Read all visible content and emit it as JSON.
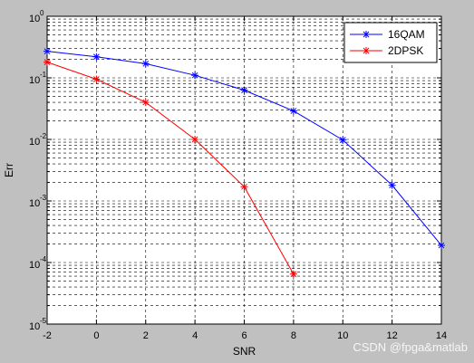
{
  "chart_data": {
    "type": "line",
    "xlabel": "SNR",
    "ylabel": "Err",
    "yscale": "log",
    "xlim": [
      -2,
      14
    ],
    "ylim": [
      1e-05,
      1
    ],
    "x_ticks": [
      -2,
      0,
      2,
      4,
      6,
      8,
      10,
      12,
      14
    ],
    "x_tick_labels": [
      "-2",
      "0",
      "2",
      "4",
      "6",
      "8",
      "10",
      "12",
      "14"
    ],
    "y_ticks": [
      1e-05,
      0.0001,
      0.001,
      0.01,
      0.1,
      1
    ],
    "y_tick_labels": [
      {
        "base": "10",
        "exp": "-5"
      },
      {
        "base": "10",
        "exp": "-4"
      },
      {
        "base": "10",
        "exp": "-3"
      },
      {
        "base": "10",
        "exp": "-2"
      },
      {
        "base": "10",
        "exp": "-1"
      },
      {
        "base": "10",
        "exp": "0"
      }
    ],
    "grid": true,
    "grid_style": "dashed, including minor log ticks",
    "legend_position": "top-right",
    "series": [
      {
        "name": "16QAM",
        "color": "#0000ff",
        "marker": "asterisk",
        "x": [
          -2,
          0,
          2,
          4,
          6,
          8,
          10,
          12,
          14
        ],
        "y": [
          0.27,
          0.22,
          0.17,
          0.11,
          0.063,
          0.029,
          0.0098,
          0.0018,
          0.00019
        ]
      },
      {
        "name": "2DPSK",
        "color": "#ff0000",
        "marker": "asterisk",
        "x": [
          -2,
          0,
          2,
          4,
          6,
          8
        ],
        "y": [
          0.18,
          0.095,
          0.04,
          0.01,
          0.0017,
          6.5e-05
        ]
      }
    ]
  },
  "watermark": {
    "text": "CSDN @fpga&matlab"
  }
}
